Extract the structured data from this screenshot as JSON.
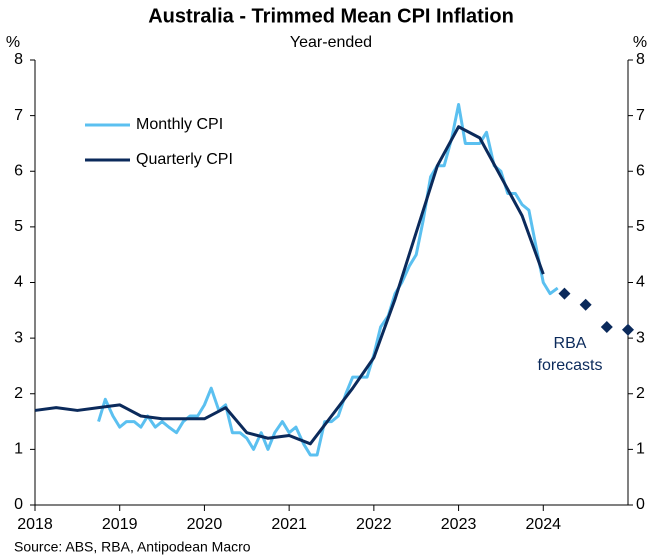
{
  "chart_data": {
    "type": "line",
    "title": "Australia - Trimmed Mean CPI Inflation",
    "subtitle": "Year-ended",
    "y_label": "%",
    "y2_label": "%",
    "source": "Source: ABS, RBA, Antipodean Macro",
    "annotation": [
      "RBA",
      "forecasts"
    ],
    "legend": "upper left",
    "xlim": [
      2018,
      2025
    ],
    "xticks": [
      2018,
      2019,
      2020,
      2021,
      2022,
      2023,
      2024
    ],
    "ylim": [
      0,
      8
    ],
    "yticks": [
      0,
      1,
      2,
      3,
      4,
      5,
      6,
      7,
      8
    ],
    "y2lim": [
      0,
      8
    ],
    "y2ticks": [
      0,
      1,
      2,
      3,
      4,
      5,
      6,
      7,
      8
    ],
    "series": [
      {
        "name": "Monthly CPI",
        "color": "#5bc0f0",
        "marker": "none",
        "x": [
          2018.75,
          2018.83,
          2018.92,
          2019.0,
          2019.08,
          2019.17,
          2019.25,
          2019.33,
          2019.42,
          2019.5,
          2019.58,
          2019.67,
          2019.75,
          2019.83,
          2019.92,
          2020.0,
          2020.08,
          2020.17,
          2020.25,
          2020.33,
          2020.42,
          2020.5,
          2020.58,
          2020.67,
          2020.75,
          2020.83,
          2020.92,
          2021.0,
          2021.08,
          2021.17,
          2021.25,
          2021.33,
          2021.42,
          2021.5,
          2021.58,
          2021.67,
          2021.75,
          2021.83,
          2021.92,
          2022.0,
          2022.08,
          2022.17,
          2022.25,
          2022.33,
          2022.42,
          2022.5,
          2022.58,
          2022.67,
          2022.75,
          2022.83,
          2022.92,
          2023.0,
          2023.08,
          2023.17,
          2023.25,
          2023.33,
          2023.42,
          2023.5,
          2023.58,
          2023.67,
          2023.75,
          2023.83,
          2023.92,
          2024.0,
          2024.08,
          2024.17
        ],
        "values": [
          1.5,
          1.9,
          1.6,
          1.4,
          1.5,
          1.5,
          1.4,
          1.6,
          1.4,
          1.5,
          1.4,
          1.3,
          1.5,
          1.6,
          1.6,
          1.8,
          2.1,
          1.7,
          1.8,
          1.3,
          1.3,
          1.2,
          1.0,
          1.3,
          1.0,
          1.3,
          1.5,
          1.3,
          1.4,
          1.1,
          0.9,
          0.9,
          1.5,
          1.5,
          1.6,
          2.0,
          2.3,
          2.3,
          2.3,
          2.7,
          3.2,
          3.4,
          3.8,
          4.0,
          4.3,
          4.5,
          5.1,
          5.9,
          6.1,
          6.1,
          6.6,
          7.2,
          6.5,
          6.5,
          6.5,
          6.7,
          6.1,
          6.0,
          5.6,
          5.6,
          5.4,
          5.3,
          4.6,
          4.0,
          3.8,
          3.9
        ]
      },
      {
        "name": "Quarterly CPI",
        "color": "#0b2a5b",
        "marker": "none",
        "x": [
          2018.0,
          2018.25,
          2018.5,
          2018.75,
          2019.0,
          2019.25,
          2019.5,
          2019.75,
          2020.0,
          2020.25,
          2020.5,
          2020.75,
          2021.0,
          2021.25,
          2021.5,
          2021.75,
          2022.0,
          2022.25,
          2022.5,
          2022.75,
          2023.0,
          2023.25,
          2023.5,
          2023.75,
          2024.0
        ],
        "values": [
          1.7,
          1.75,
          1.7,
          1.75,
          1.8,
          1.6,
          1.55,
          1.55,
          1.55,
          1.75,
          1.3,
          1.2,
          1.25,
          1.1,
          1.6,
          2.1,
          2.65,
          3.7,
          4.9,
          6.1,
          6.8,
          6.6,
          5.9,
          5.2,
          4.15
        ]
      },
      {
        "color": "#0b2a5b",
        "marker": "diamond",
        "x": [
          2024.25,
          2024.5,
          2024.75,
          2025.0
        ],
        "values": [
          3.8,
          3.6,
          3.2,
          3.15
        ]
      }
    ]
  }
}
